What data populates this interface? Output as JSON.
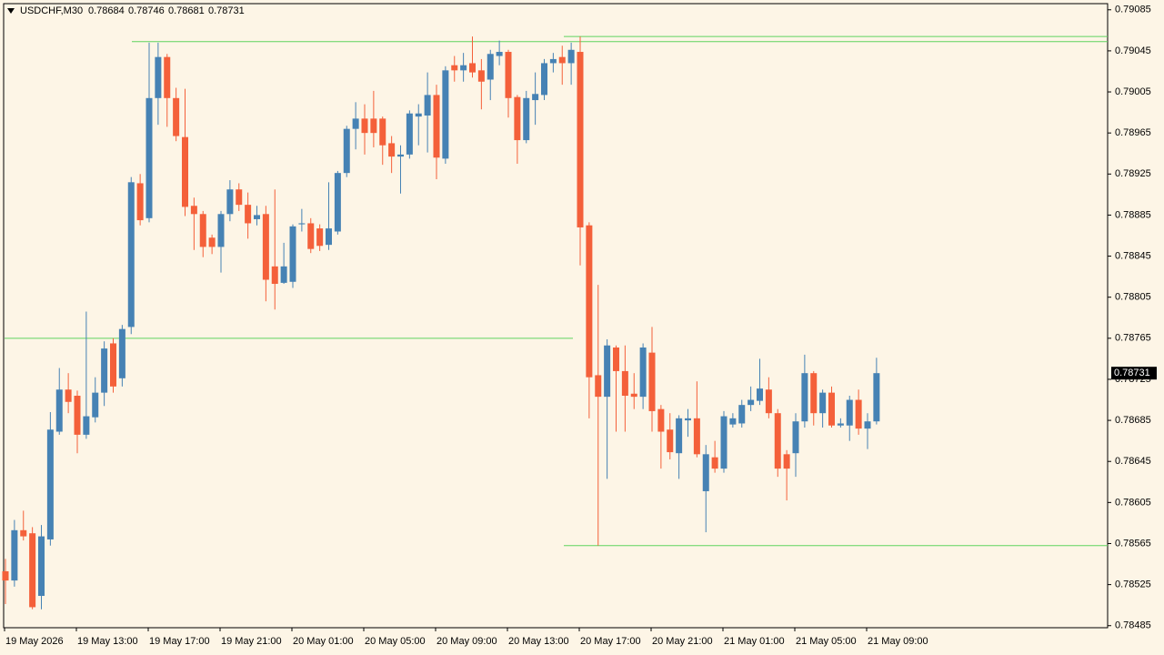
{
  "chart_data": {
    "type": "candlestick",
    "title": "USDCHF,M30",
    "categories": [
      "19 May 2026",
      null,
      null,
      null,
      null,
      null,
      null,
      null,
      "19 May 13:00",
      null,
      null,
      null,
      null,
      null,
      null,
      null,
      "19 May 17:00",
      null,
      null,
      null,
      null,
      null,
      null,
      null,
      "19 May 21:00",
      null,
      null,
      null,
      null,
      null,
      null,
      null,
      "20 May 01:00",
      null,
      null,
      null,
      null,
      null,
      null,
      null,
      "20 May 05:00",
      null,
      null,
      null,
      null,
      null,
      null,
      null,
      "20 May 09:00",
      null,
      null,
      null,
      null,
      null,
      null,
      null,
      "20 May 13:00",
      null,
      null,
      null,
      null,
      null,
      null,
      null,
      "20 May 17:00",
      null,
      null,
      null,
      null,
      null,
      null,
      null,
      "20 May 21:00",
      null,
      null,
      null,
      null,
      null,
      null,
      null,
      "21 May 01:00",
      null,
      null,
      null,
      null,
      null,
      null,
      null,
      "21 May 05:00",
      null,
      null,
      null,
      null,
      null,
      null,
      null,
      "21 May 09:00",
      null
    ],
    "open": [
      0.78538,
      0.78529,
      0.78578,
      0.78575,
      0.78514,
      0.78569,
      0.78674,
      0.78715,
      0.78709,
      0.78671,
      0.78688,
      0.78712,
      0.7876,
      0.78726,
      0.78776,
      0.78916,
      0.78882,
      0.78999,
      0.79039,
      0.78999,
      0.78961,
      0.78894,
      0.78886,
      0.78863,
      0.78854,
      0.78886,
      0.7891,
      0.78895,
      0.78881,
      0.78886,
      0.78835,
      0.78819,
      0.7882,
      0.78876,
      0.78877,
      0.78872,
      0.78856,
      0.78869,
      0.78926,
      0.78969,
      0.78979,
      0.78979,
      0.78979,
      0.78955,
      0.78942,
      0.78944,
      0.78981,
      0.78982,
      0.79002,
      0.7894,
      0.79031,
      0.79026,
      0.79033,
      0.79026,
      0.79017,
      0.7904,
      0.79044,
      0.79,
      0.78958,
      0.78997,
      0.79002,
      0.79033,
      0.79039,
      0.79033,
      0.79044,
      0.78875,
      0.78729,
      0.78708,
      0.78756,
      0.78733,
      0.78711,
      0.78708,
      0.78751,
      0.78696,
      0.78676,
      0.78653,
      0.78685,
      0.78687,
      0.78616,
      0.78649,
      0.78638,
      0.78681,
      0.78682,
      0.787,
      0.78704,
      0.78715,
      0.78692,
      0.78652,
      0.78653,
      0.78684,
      0.78731,
      0.78692,
      0.78712,
      0.7868,
      0.7868,
      0.78705,
      0.78677,
      0.78684
    ],
    "high": [
      0.7855,
      0.78588,
      0.78597,
      0.78581,
      0.78583,
      0.78693,
      0.78736,
      0.78731,
      0.78714,
      0.78791,
      0.78727,
      0.78762,
      0.78765,
      0.78778,
      0.78922,
      0.78925,
      0.79053,
      0.79053,
      0.79042,
      0.79009,
      0.79008,
      0.78902,
      0.78889,
      0.78866,
      0.78889,
      0.78919,
      0.78916,
      0.78907,
      0.78894,
      0.78894,
      0.7891,
      0.78858,
      0.78876,
      0.78891,
      0.78882,
      0.78876,
      0.78917,
      0.78928,
      0.78972,
      0.78995,
      0.78993,
      0.79006,
      0.78981,
      0.78962,
      0.78953,
      0.78987,
      0.78993,
      0.79024,
      0.79012,
      0.7903,
      0.7904,
      0.79043,
      0.79059,
      0.79037,
      0.79046,
      0.79055,
      0.79046,
      0.79002,
      0.79006,
      0.79024,
      0.79037,
      0.79043,
      0.7905,
      0.79053,
      0.79059,
      0.78878,
      0.78817,
      0.78764,
      0.78758,
      0.78758,
      0.78731,
      0.7876,
      0.78776,
      0.787,
      0.78692,
      0.7869,
      0.78696,
      0.78723,
      0.78661,
      0.78665,
      0.78694,
      0.78692,
      0.78705,
      0.78718,
      0.78745,
      0.78727,
      0.78696,
      0.78656,
      0.78692,
      0.78749,
      0.78733,
      0.78715,
      0.78718,
      0.78687,
      0.78709,
      0.78715,
      0.78692,
      0.78746
    ],
    "low": [
      0.78506,
      0.78523,
      0.78568,
      0.78501,
      0.78501,
      0.78563,
      0.78671,
      0.78692,
      0.78653,
      0.78667,
      0.78683,
      0.78699,
      0.78712,
      0.78718,
      0.78769,
      0.78875,
      0.78878,
      0.78973,
      0.78971,
      0.78957,
      0.78884,
      0.78851,
      0.78844,
      0.78847,
      0.78829,
      0.78879,
      0.78889,
      0.78862,
      0.78875,
      0.78801,
      0.78793,
      0.78818,
      0.78814,
      0.78869,
      0.78848,
      0.7885,
      0.78851,
      0.78866,
      0.78922,
      0.78949,
      0.78944,
      0.78951,
      0.78934,
      0.78926,
      0.78906,
      0.7894,
      0.78953,
      0.78946,
      0.7892,
      0.78935,
      0.79015,
      0.79015,
      0.79019,
      0.78988,
      0.78997,
      0.79031,
      0.7898,
      0.78935,
      0.78955,
      0.78973,
      0.78997,
      0.79024,
      0.79012,
      0.79012,
      0.78836,
      0.78687,
      0.78563,
      0.78628,
      0.78674,
      0.78674,
      0.78696,
      0.78696,
      0.78674,
      0.78638,
      0.78647,
      0.78628,
      0.78669,
      0.78649,
      0.78576,
      0.78634,
      0.78634,
      0.78678,
      0.78678,
      0.78694,
      0.787,
      0.78687,
      0.7863,
      0.78607,
      0.7863,
      0.78678,
      0.7868,
      0.78678,
      0.78678,
      0.78678,
      0.78665,
      0.78671,
      0.78657,
      0.78681
    ],
    "close": [
      0.78529,
      0.78578,
      0.78572,
      0.78503,
      0.78572,
      0.78676,
      0.78715,
      0.78703,
      0.78671,
      0.78689,
      0.78712,
      0.78755,
      0.78718,
      0.78774,
      0.78917,
      0.7888,
      0.78999,
      0.79039,
      0.78999,
      0.78962,
      0.78893,
      0.78886,
      0.78854,
      0.78854,
      0.78886,
      0.7891,
      0.78895,
      0.78877,
      0.78885,
      0.78822,
      0.78818,
      0.78835,
      0.78874,
      0.78877,
      0.78852,
      0.78855,
      0.78872,
      0.78926,
      0.78969,
      0.78979,
      0.78965,
      0.78965,
      0.78953,
      0.78942,
      0.78944,
      0.78984,
      0.78984,
      0.79002,
      0.78941,
      0.79026,
      0.79026,
      0.79031,
      0.79024,
      0.79015,
      0.79042,
      0.79044,
      0.78999,
      0.78958,
      0.78999,
      0.79003,
      0.79033,
      0.79037,
      0.79033,
      0.79046,
      0.78873,
      0.78727,
      0.78708,
      0.78758,
      0.78733,
      0.78709,
      0.78708,
      0.78756,
      0.78694,
      0.78674,
      0.78654,
      0.78687,
      0.78687,
      0.78652,
      0.78652,
      0.78638,
      0.78689,
      0.78687,
      0.787,
      0.78705,
      0.78716,
      0.78692,
      0.78638,
      0.78638,
      0.78684,
      0.78731,
      0.78692,
      0.78712,
      0.7868,
      0.78682,
      0.78705,
      0.78677,
      0.78684,
      0.78731
    ],
    "up_color": "#4682b4",
    "down_color": "#f4603a",
    "level_color": "#5fd35f",
    "levels": [
      0.79054,
      0.79059,
      0.78765,
      0.78563
    ],
    "ylim": [
      0.78483,
      0.79091
    ],
    "yticks": [
      0.79085,
      0.79045,
      0.79005,
      0.78965,
      0.78925,
      0.78885,
      0.78845,
      0.78805,
      0.78765,
      0.78725,
      0.78685,
      0.78645,
      0.78605,
      0.78565,
      0.78525,
      0.78485
    ],
    "grid": false
  }
}
